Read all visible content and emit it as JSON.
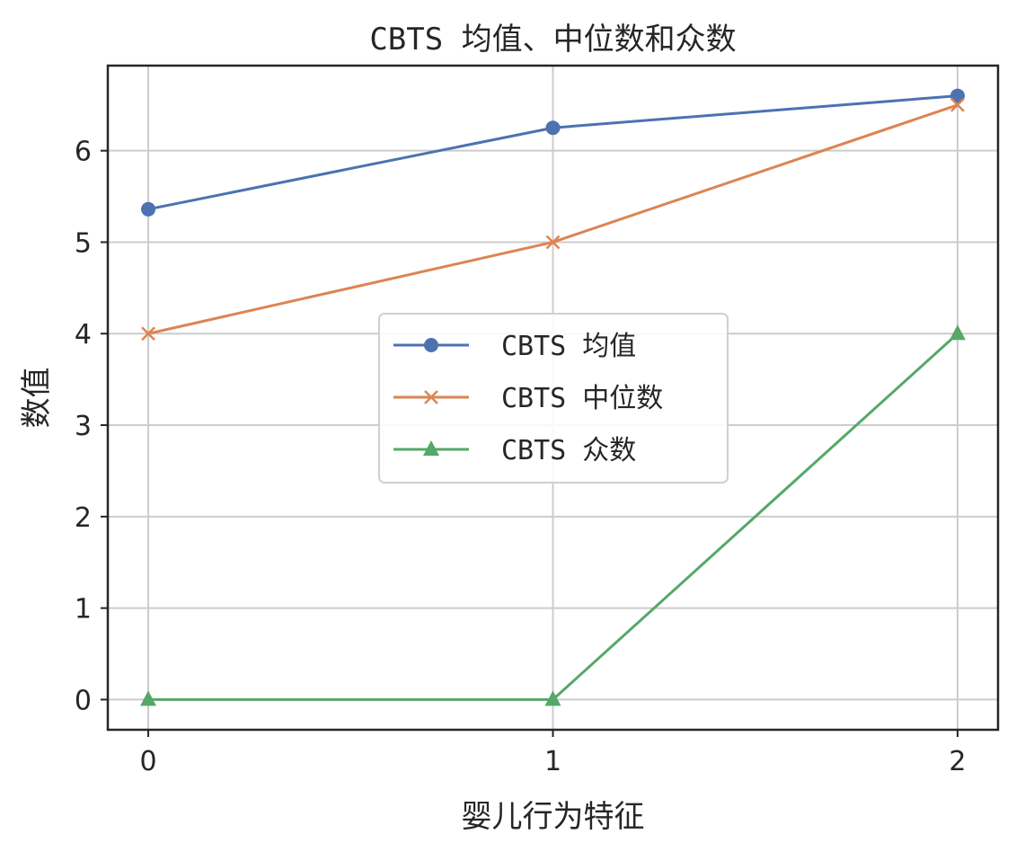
{
  "chart_data": {
    "type": "line",
    "title": "CBTS 均值、中位数和众数",
    "xlabel": "婴儿行为特征",
    "ylabel": "数值",
    "x": [
      0,
      1,
      2
    ],
    "x_ticks": [
      "0",
      "1",
      "2"
    ],
    "y_ticks": [
      "0",
      "1",
      "2",
      "3",
      "4",
      "5",
      "6"
    ],
    "xlim": [
      -0.1,
      2.1
    ],
    "ylim": [
      -0.33,
      6.93
    ],
    "grid": true,
    "legend_position": "center",
    "series": [
      {
        "name": "CBTS 均值",
        "values": [
          5.36,
          6.25,
          6.6
        ],
        "color": "#4c72b0",
        "marker": "circle"
      },
      {
        "name": "CBTS 中位数",
        "values": [
          4.0,
          5.0,
          6.5
        ],
        "color": "#dd8452",
        "marker": "x"
      },
      {
        "name": "CBTS 众数",
        "values": [
          0.0,
          0.0,
          4.0
        ],
        "color": "#55a868",
        "marker": "triangle"
      }
    ]
  }
}
